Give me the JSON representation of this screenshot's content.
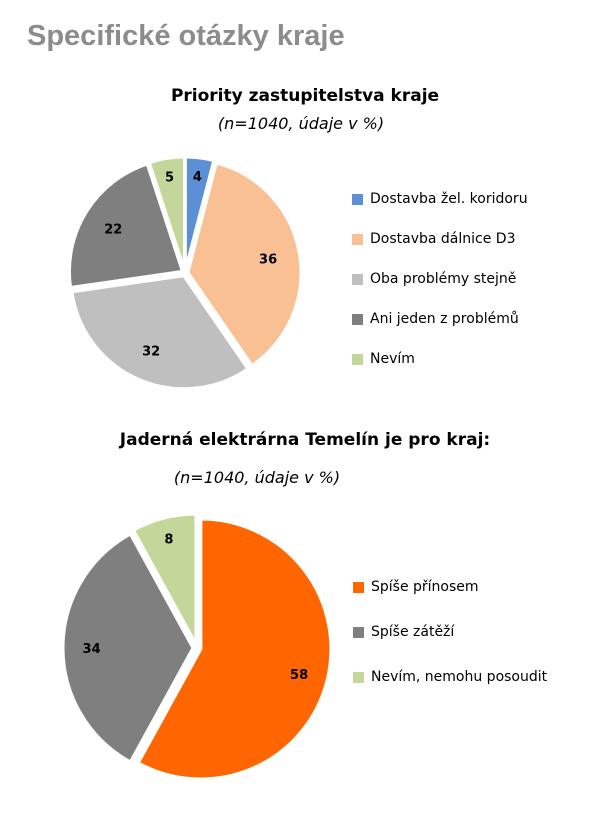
{
  "page_title": "Specifické otázky kraje",
  "chart_data": [
    {
      "type": "pie",
      "title": "Priority zastupitelstva kraje",
      "subtitle": "(n=1040, údaje v %)",
      "legend_position": "right",
      "series": [
        {
          "name": "Dostavba žel. koridoru",
          "value": 4,
          "color": "#5b8fd6"
        },
        {
          "name": "Dostavba dálnice D3",
          "value": 36,
          "color": "#f9c094"
        },
        {
          "name": "Oba problémy stejně",
          "value": 32,
          "color": "#bfbfbf"
        },
        {
          "name": "Ani jeden z problémů",
          "value": 22,
          "color": "#7f7f7f"
        },
        {
          "name": "Nevím",
          "value": 5,
          "color": "#c4d79b"
        }
      ]
    },
    {
      "type": "pie",
      "title": "Jaderná elektrárna Temelín je pro kraj:",
      "subtitle": "(n=1040, údaje v %)",
      "legend_position": "right",
      "series": [
        {
          "name": "Spíše přínosem",
          "value": 58,
          "color": "#ff6600"
        },
        {
          "name": "Spíše zátěží",
          "value": 34,
          "color": "#7f7f7f"
        },
        {
          "name": "Nevím, nemohu posoudit",
          "value": 8,
          "color": "#c4d79b"
        }
      ]
    }
  ]
}
